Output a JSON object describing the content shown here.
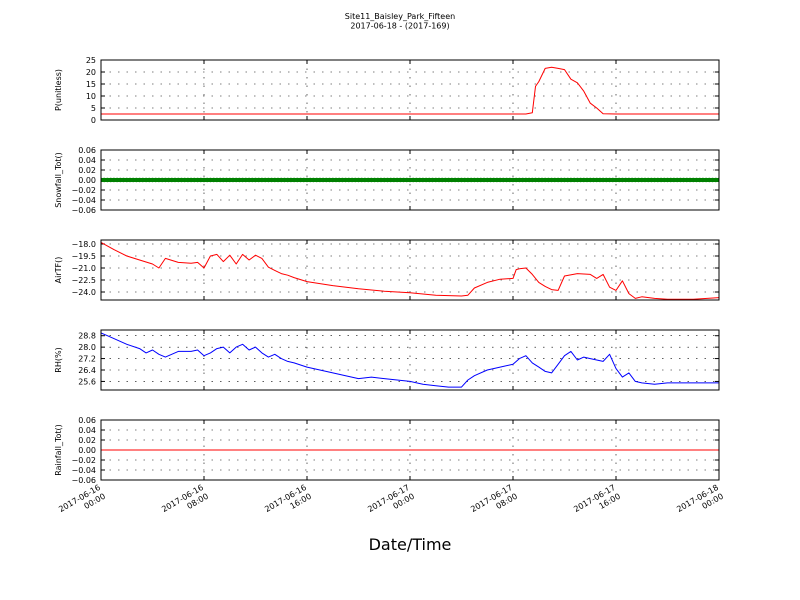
{
  "title": "Site11_Baisley_Park_Fifteen",
  "subtitle": "2017-06-18 - (2017-169)",
  "xlabel": "Date/Time",
  "x_ticks": [
    {
      "line1": "2017-06-16",
      "line2": "00:00",
      "hours": 0
    },
    {
      "line1": "2017-06-16",
      "line2": "08:00",
      "hours": 8
    },
    {
      "line1": "2017-06-16",
      "line2": "16:00",
      "hours": 16
    },
    {
      "line1": "2017-06-17",
      "line2": "00:00",
      "hours": 24
    },
    {
      "line1": "2017-06-17",
      "line2": "08:00",
      "hours": 32
    },
    {
      "line1": "2017-06-17",
      "line2": "16:00",
      "hours": 40
    },
    {
      "line1": "2017-06-18",
      "line2": "00:00",
      "hours": 48
    }
  ],
  "chart_data": [
    {
      "type": "line",
      "ylabel": "P(unitless)",
      "ylim": [
        0,
        25
      ],
      "yticks": [
        "0",
        "5",
        "10",
        "15",
        "20",
        "25"
      ],
      "grid": true,
      "series": [
        {
          "color": "#ff0000",
          "x": [
            "2017-06-16 00:00",
            "2017-06-17 08:00",
            "2017-06-17 09:00",
            "2017-06-17 09:30",
            "2017-06-17 09:45",
            "2017-06-17 10:00",
            "2017-06-17 10:30",
            "2017-06-17 11:00",
            "2017-06-17 11:30",
            "2017-06-17 12:00",
            "2017-06-17 12:30",
            "2017-06-17 13:00",
            "2017-06-17 13:30",
            "2017-06-17 14:00",
            "2017-06-17 14:30",
            "2017-06-17 15:00",
            "2017-06-17 16:00",
            "2017-06-18 00:00"
          ],
          "values": [
            2.5,
            2.5,
            2.5,
            3.0,
            14.0,
            16.0,
            21.5,
            22.0,
            21.5,
            21.0,
            17.0,
            15.5,
            12.0,
            7.0,
            5.0,
            2.6,
            2.5,
            2.5
          ]
        }
      ]
    },
    {
      "type": "line",
      "ylabel": "Snowfall_Tot()",
      "ylim": [
        -0.06,
        0.06
      ],
      "yticks": [
        "−0.06",
        "−0.04",
        "−0.02",
        "0.00",
        "0.02",
        "0.04",
        "0.06"
      ],
      "grid": true,
      "series": [
        {
          "color": "#008000",
          "marker": "dot",
          "x": [
            "2017-06-16 00:00",
            "2017-06-18 00:00"
          ],
          "values": [
            0,
            0
          ]
        }
      ]
    },
    {
      "type": "line",
      "ylabel": "AirTF()",
      "ylim": [
        -25,
        -17.5
      ],
      "yticks": [
        "−24.0",
        "−22.5",
        "−21.0",
        "−19.5",
        "−18.0"
      ],
      "grid": true,
      "series": [
        {
          "color": "#ff0000",
          "x": [
            "2017-06-16 00:00",
            "2017-06-16 01:00",
            "2017-06-16 02:00",
            "2017-06-16 03:00",
            "2017-06-16 04:00",
            "2017-06-16 04:30",
            "2017-06-16 05:00",
            "2017-06-16 06:00",
            "2017-06-16 07:00",
            "2017-06-16 07:30",
            "2017-06-16 08:00",
            "2017-06-16 08:30",
            "2017-06-16 09:00",
            "2017-06-16 09:30",
            "2017-06-16 10:00",
            "2017-06-16 10:30",
            "2017-06-16 11:00",
            "2017-06-16 11:30",
            "2017-06-16 12:00",
            "2017-06-16 12:30",
            "2017-06-16 13:00",
            "2017-06-16 13:30",
            "2017-06-16 14:00",
            "2017-06-16 14:30",
            "2017-06-16 15:00",
            "2017-06-16 16:00",
            "2017-06-16 18:00",
            "2017-06-16 20:00",
            "2017-06-16 22:00",
            "2017-06-17 00:00",
            "2017-06-17 02:00",
            "2017-06-17 04:00",
            "2017-06-17 04:30",
            "2017-06-17 05:00",
            "2017-06-17 06:00",
            "2017-06-17 07:00",
            "2017-06-17 08:00",
            "2017-06-17 08:15",
            "2017-06-17 08:30",
            "2017-06-17 09:00",
            "2017-06-17 09:30",
            "2017-06-17 10:00",
            "2017-06-17 10:30",
            "2017-06-17 11:00",
            "2017-06-17 11:30",
            "2017-06-17 12:00",
            "2017-06-17 13:00",
            "2017-06-17 14:00",
            "2017-06-17 14:30",
            "2017-06-17 15:00",
            "2017-06-17 15:30",
            "2017-06-17 16:00",
            "2017-06-17 16:30",
            "2017-06-17 17:00",
            "2017-06-17 17:30",
            "2017-06-17 18:00",
            "2017-06-17 19:00",
            "2017-06-17 20:00",
            "2017-06-17 22:00",
            "2017-06-18 00:00"
          ],
          "values": [
            -17.8,
            -18.7,
            -19.5,
            -20.0,
            -20.5,
            -21.0,
            -19.8,
            -20.3,
            -20.4,
            -20.3,
            -21.0,
            -19.5,
            -19.3,
            -20.2,
            -19.4,
            -20.5,
            -19.3,
            -20.0,
            -19.4,
            -19.8,
            -20.9,
            -21.3,
            -21.7,
            -21.9,
            -22.2,
            -22.7,
            -23.2,
            -23.6,
            -23.9,
            -24.1,
            -24.4,
            -24.5,
            -24.4,
            -23.5,
            -22.8,
            -22.4,
            -22.3,
            -21.2,
            -21.1,
            -21.0,
            -21.8,
            -22.8,
            -23.3,
            -23.7,
            -23.8,
            -22.0,
            -21.7,
            -21.8,
            -22.3,
            -21.8,
            -23.4,
            -23.8,
            -22.6,
            -24.2,
            -24.8,
            -24.6,
            -24.8,
            -24.9,
            -24.9,
            -24.7
          ]
        }
      ]
    },
    {
      "type": "line",
      "ylabel": "RH(%)",
      "ylim": [
        25.0,
        29.2
      ],
      "yticks": [
        "25.6",
        "26.4",
        "27.2",
        "28.0",
        "28.8"
      ],
      "grid": true,
      "series": [
        {
          "color": "#0000ff",
          "x": [
            "2017-06-16 00:00",
            "2017-06-16 00:30",
            "2017-06-16 01:00",
            "2017-06-16 02:00",
            "2017-06-16 03:00",
            "2017-06-16 03:30",
            "2017-06-16 04:00",
            "2017-06-16 04:30",
            "2017-06-16 05:00",
            "2017-06-16 06:00",
            "2017-06-16 07:00",
            "2017-06-16 07:30",
            "2017-06-16 08:00",
            "2017-06-16 08:30",
            "2017-06-16 09:00",
            "2017-06-16 09:30",
            "2017-06-16 10:00",
            "2017-06-16 10:30",
            "2017-06-16 11:00",
            "2017-06-16 11:30",
            "2017-06-16 12:00",
            "2017-06-16 12:30",
            "2017-06-16 13:00",
            "2017-06-16 13:30",
            "2017-06-16 14:00",
            "2017-06-16 14:30",
            "2017-06-16 15:00",
            "2017-06-16 16:00",
            "2017-06-16 17:00",
            "2017-06-16 18:00",
            "2017-06-16 19:00",
            "2017-06-16 20:00",
            "2017-06-16 21:00",
            "2017-06-16 22:00",
            "2017-06-16 23:00",
            "2017-06-17 00:00",
            "2017-06-17 01:00",
            "2017-06-17 02:00",
            "2017-06-17 03:00",
            "2017-06-17 04:00",
            "2017-06-17 04:30",
            "2017-06-17 05:00",
            "2017-06-17 06:00",
            "2017-06-17 07:00",
            "2017-06-17 08:00",
            "2017-06-17 08:30",
            "2017-06-17 09:00",
            "2017-06-17 09:30",
            "2017-06-17 10:00",
            "2017-06-17 10:30",
            "2017-06-17 11:00",
            "2017-06-17 11:30",
            "2017-06-17 12:00",
            "2017-06-17 12:30",
            "2017-06-17 13:00",
            "2017-06-17 13:30",
            "2017-06-17 14:00",
            "2017-06-17 15:00",
            "2017-06-17 15:30",
            "2017-06-17 16:00",
            "2017-06-17 16:30",
            "2017-06-17 17:00",
            "2017-06-17 17:30",
            "2017-06-17 18:00",
            "2017-06-17 19:00",
            "2017-06-17 20:00",
            "2017-06-17 22:00",
            "2017-06-18 00:00"
          ],
          "values": [
            29.0,
            28.8,
            28.6,
            28.2,
            27.9,
            27.6,
            27.8,
            27.5,
            27.3,
            27.7,
            27.7,
            27.8,
            27.4,
            27.6,
            27.9,
            28.0,
            27.6,
            28.0,
            28.2,
            27.8,
            28.0,
            27.6,
            27.3,
            27.5,
            27.2,
            27.0,
            26.9,
            26.6,
            26.4,
            26.2,
            26.0,
            25.8,
            25.9,
            25.8,
            25.7,
            25.6,
            25.4,
            25.3,
            25.2,
            25.2,
            25.7,
            26.0,
            26.4,
            26.6,
            26.8,
            27.2,
            27.4,
            26.9,
            26.6,
            26.3,
            26.2,
            26.8,
            27.4,
            27.7,
            27.1,
            27.3,
            27.2,
            27.0,
            27.5,
            26.5,
            25.9,
            26.2,
            25.6,
            25.5,
            25.4,
            25.5,
            25.5,
            25.5
          ]
        }
      ]
    },
    {
      "type": "line",
      "ylabel": "Rainfall_Tot()",
      "ylim": [
        -0.06,
        0.06
      ],
      "yticks": [
        "−0.06",
        "−0.04",
        "−0.02",
        "0.00",
        "0.02",
        "0.04",
        "0.06"
      ],
      "grid": true,
      "series": [
        {
          "color": "#ff0000",
          "x": [
            "2017-06-16 00:00",
            "2017-06-18 00:00"
          ],
          "values": [
            0,
            0
          ]
        }
      ]
    }
  ]
}
